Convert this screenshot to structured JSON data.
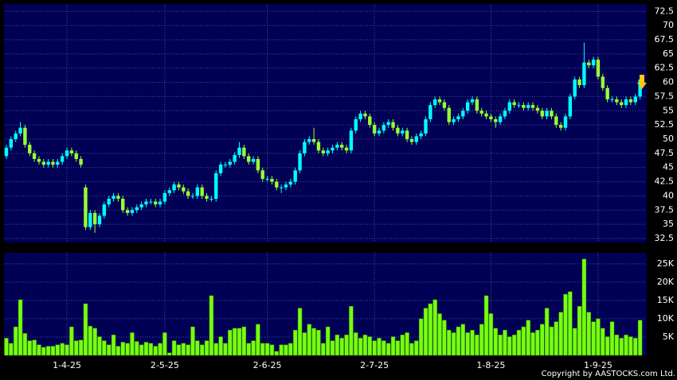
{
  "chart_data": [
    {
      "type": "candlestick",
      "categories": [
        null,
        null,
        null,
        null,
        null,
        null,
        null,
        null,
        null,
        null,
        null,
        null,
        null,
        "1-4-25",
        null,
        null,
        null,
        null,
        null,
        null,
        null,
        null,
        null,
        null,
        null,
        null,
        null,
        null,
        null,
        null,
        null,
        null,
        null,
        null,
        "2-5-25",
        null,
        null,
        null,
        null,
        null,
        null,
        null,
        null,
        null,
        null,
        null,
        null,
        null,
        null,
        null,
        null,
        null,
        null,
        null,
        null,
        null,
        "2-6-25",
        null,
        null,
        null,
        null,
        null,
        null,
        null,
        null,
        null,
        null,
        null,
        null,
        null,
        null,
        null,
        null,
        null,
        null,
        null,
        null,
        null,
        null,
        "2-7-25",
        null,
        null,
        null,
        null,
        null,
        null,
        null,
        null,
        null,
        null,
        null,
        null,
        null,
        null,
        null,
        null,
        null,
        null,
        null,
        null,
        null,
        null,
        null,
        null,
        "1-8-25",
        null,
        null,
        null,
        null,
        null,
        null,
        null,
        null,
        null,
        null,
        null,
        null,
        null,
        null,
        null,
        null,
        null,
        null,
        null,
        null,
        null,
        null,
        "1-9-25",
        null,
        null,
        null,
        null,
        null,
        null,
        null,
        null,
        null
      ],
      "open": [
        47,
        48.5,
        50,
        51,
        52,
        49,
        47.5,
        46.5,
        46,
        45.5,
        46,
        45.5,
        46,
        47,
        48,
        47.5,
        46.5,
        41.5,
        34.5,
        37,
        35,
        36.5,
        38.5,
        39.5,
        40,
        39.5,
        37.5,
        37,
        37.5,
        38,
        38.5,
        39,
        39,
        38.5,
        39,
        40.5,
        41,
        42,
        41.5,
        40.8,
        40,
        40,
        41.5,
        40,
        39.5,
        39.5,
        44,
        45.5,
        45.5,
        46,
        47.2,
        48.5,
        47,
        46,
        46.5,
        44.5,
        43,
        43,
        42.5,
        41.5,
        41.5,
        42,
        42.5,
        44.5,
        47.5,
        49.5,
        50,
        49.5,
        48,
        47.5,
        48,
        48.5,
        49,
        48.5,
        48,
        51.5,
        53.5,
        54.5,
        54,
        52.5,
        51,
        51.5,
        52.5,
        53,
        52,
        51,
        51.5,
        50,
        49.5,
        50.5,
        51,
        53.5,
        56,
        57,
        56.5,
        55.5,
        53,
        53.5,
        54,
        55,
        56.5,
        57,
        55,
        54.5,
        54,
        53.5,
        53,
        54,
        55,
        56.5,
        56,
        56,
        55.5,
        56,
        55.5,
        55,
        54,
        55,
        54,
        52.5,
        52,
        54,
        57.5,
        60.5,
        59.5,
        63.5,
        63,
        64,
        61,
        59,
        57,
        57,
        56.5,
        56,
        57,
        56.5,
        57.5
      ],
      "high": [
        49,
        50.5,
        51.5,
        53,
        52.5,
        49.5,
        48,
        47,
        46.5,
        46.5,
        46.5,
        46.5,
        47.5,
        48.5,
        48.5,
        48,
        47,
        42,
        37.5,
        37.5,
        37,
        39,
        40,
        40.5,
        40.5,
        40,
        38,
        38,
        38.5,
        39,
        39.5,
        39.5,
        39.5,
        39.5,
        41,
        41.5,
        42.5,
        42.5,
        42,
        41.3,
        40.5,
        42,
        42,
        40.5,
        40,
        44.5,
        46,
        46,
        46.5,
        47.7,
        49.5,
        49,
        47.5,
        47,
        47,
        45,
        43.5,
        43.5,
        43,
        42,
        42.5,
        43,
        45,
        48,
        50,
        50.5,
        52,
        50,
        48.5,
        48.5,
        49,
        49.5,
        49.5,
        49,
        52,
        54,
        55,
        55,
        54.5,
        53,
        52,
        53,
        53.5,
        53.5,
        52.5,
        52,
        52,
        50.5,
        51,
        51.5,
        54,
        56.5,
        57.5,
        57.5,
        57,
        56,
        54,
        54.5,
        55.5,
        57,
        57.5,
        57.5,
        55.5,
        55,
        54.5,
        54,
        54.5,
        55.5,
        57,
        57,
        56.5,
        56.5,
        56.5,
        56.5,
        56,
        55.5,
        55.5,
        55.5,
        54.5,
        53,
        54.5,
        58,
        61,
        61,
        67,
        64,
        64.5,
        64.5,
        61.5,
        59.5,
        57.5,
        57.5,
        57,
        57.5,
        57.5,
        58,
        61
      ],
      "low": [
        46.5,
        48,
        49.5,
        50.5,
        48.5,
        47,
        46,
        45.5,
        45,
        45,
        45,
        45,
        45.5,
        46.5,
        47,
        46,
        45,
        34,
        34,
        33.5,
        34.5,
        36,
        38,
        39,
        39,
        37,
        36.5,
        36.5,
        37,
        37.5,
        38,
        38.5,
        38,
        38,
        38.5,
        40,
        40.5,
        41,
        40.3,
        39.5,
        39.5,
        39.5,
        39.5,
        39,
        39,
        39,
        43.5,
        45,
        45,
        45.5,
        46.7,
        46.5,
        45.5,
        45.5,
        44,
        42.5,
        42.5,
        42,
        41,
        40.5,
        41,
        41.5,
        42,
        44,
        47,
        49,
        49,
        47.5,
        47,
        47,
        47.5,
        48,
        48,
        47.5,
        47.5,
        51,
        53,
        53.5,
        52,
        50.5,
        50.5,
        51,
        52,
        51.5,
        50.5,
        50.5,
        49.5,
        49,
        49,
        50,
        50.5,
        53,
        55.5,
        56,
        55,
        52.5,
        52.5,
        53,
        53.5,
        54.5,
        56,
        54.5,
        54,
        53.5,
        53,
        52,
        52.5,
        53.5,
        54.5,
        55.5,
        55.5,
        55,
        55,
        55,
        54.5,
        53.5,
        53.5,
        53.5,
        52,
        51.5,
        51.5,
        53.5,
        57,
        59,
        59,
        62.5,
        62.5,
        60.5,
        58.5,
        56.5,
        56.5,
        56,
        55.5,
        55.5,
        56,
        56,
        57
      ],
      "close": [
        48.5,
        50,
        51,
        52,
        49,
        47.5,
        46.5,
        46,
        45.5,
        46,
        45.5,
        46,
        47,
        48,
        47.5,
        46.5,
        45.5,
        34.5,
        37,
        35,
        36.5,
        38.5,
        39.5,
        40,
        39.5,
        37.5,
        37,
        37.5,
        38,
        38.5,
        39,
        39,
        38.5,
        39,
        40.5,
        41,
        42,
        41.5,
        40.8,
        40,
        40,
        41.5,
        40,
        39.5,
        39.5,
        44,
        45.5,
        45.5,
        46,
        47.2,
        48.5,
        47,
        46,
        46.5,
        44.5,
        43,
        43,
        42.5,
        41.5,
        41.5,
        42,
        42.5,
        44.5,
        47.5,
        49.5,
        50,
        49.5,
        48,
        47.5,
        48,
        48.5,
        49,
        48.5,
        48,
        51.5,
        53.5,
        54.5,
        54,
        52.5,
        51,
        51.5,
        52.5,
        53,
        52,
        51,
        51.5,
        50,
        49.5,
        50.5,
        51,
        53.5,
        56,
        57,
        56.5,
        55.5,
        53,
        53.5,
        54,
        55,
        56.5,
        57,
        55,
        54.5,
        54,
        53.5,
        53,
        54,
        55,
        56.5,
        56,
        56,
        55.5,
        56,
        55.5,
        55,
        54,
        55,
        54,
        52.5,
        52,
        54,
        57.5,
        60.5,
        59.5,
        63.5,
        63,
        64,
        61,
        59,
        57,
        57,
        56.5,
        56,
        57,
        56.5,
        57.5,
        60.5
      ],
      "up_color": "#00ffff",
      "down_color": "#99ff33",
      "ylim": [
        31.8,
        73.8
      ],
      "yticks": [
        32.5,
        35,
        37.5,
        40,
        42.5,
        45,
        47.5,
        50,
        52.5,
        55,
        57.5,
        60,
        62.5,
        65,
        67.5,
        70,
        72.5
      ],
      "grid": true
    },
    {
      "type": "bar",
      "values": [
        4700,
        3300,
        7800,
        15200,
        6000,
        4000,
        4200,
        2900,
        2200,
        2500,
        2500,
        2900,
        3300,
        2900,
        7800,
        4000,
        4200,
        14100,
        8000,
        7400,
        5100,
        4000,
        2900,
        5600,
        2500,
        3600,
        3300,
        6200,
        3800,
        2900,
        3600,
        3300,
        2500,
        3300,
        6200,
        700,
        4000,
        2900,
        3300,
        2900,
        7800,
        4000,
        2900,
        4000,
        16300,
        3300,
        5100,
        3300,
        6900,
        7400,
        7400,
        7800,
        3300,
        4000,
        8500,
        3300,
        3300,
        2900,
        1100,
        2900,
        2900,
        3300,
        6900,
        12900,
        6200,
        8500,
        7400,
        6900,
        3300,
        7800,
        4000,
        5600,
        4700,
        5600,
        13400,
        6200,
        4700,
        5600,
        5100,
        4000,
        4700,
        4000,
        3300,
        5100,
        4000,
        5600,
        6200,
        3300,
        4000,
        10000,
        12900,
        14100,
        15200,
        11400,
        9600,
        6900,
        6200,
        7800,
        8500,
        6200,
        6900,
        5600,
        8500,
        16300,
        11400,
        7400,
        5600,
        6900,
        5100,
        5600,
        6900,
        7800,
        9600,
        6200,
        6900,
        8500,
        12900,
        7800,
        9200,
        11800,
        16700,
        17400,
        7400,
        13400,
        26300,
        11800,
        9200,
        10000,
        7400,
        5100,
        9200,
        5600,
        4700,
        5600,
        5100,
        4700,
        9600
      ],
      "color": "#77ff11",
      "ylim": [
        0,
        28000
      ],
      "yticks": [
        {
          "value": 5000,
          "label": "5K"
        },
        {
          "value": 10000,
          "label": "10K"
        },
        {
          "value": 15000,
          "label": "15K"
        },
        {
          "value": 20000,
          "label": "20K"
        },
        {
          "value": 25000,
          "label": "25K"
        }
      ],
      "grid": true
    }
  ],
  "copyright": "Copyright by AASTOCKS.com Ltd."
}
